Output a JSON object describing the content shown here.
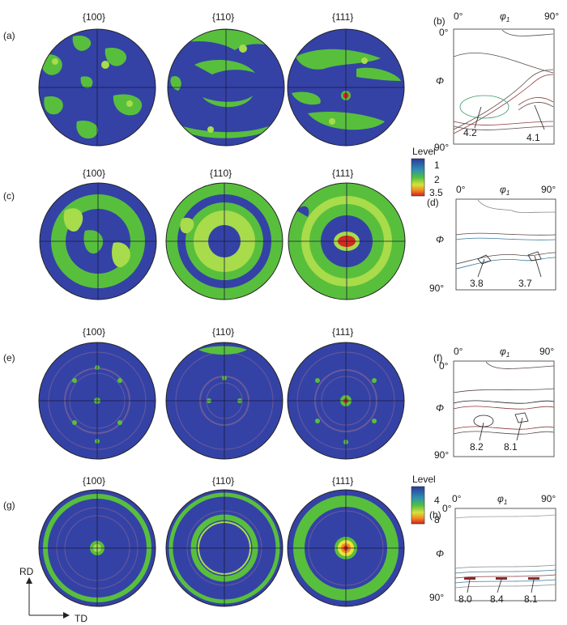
{
  "panel_labels": [
    "(a)",
    "(b)",
    "(c)",
    "(d)",
    "(e)",
    "(f)",
    "(g)",
    "(h)"
  ],
  "rows": [
    {
      "label": "(a)",
      "odf_label": "(b)",
      "poles": [
        "{100}",
        "{110}",
        "{111}"
      ],
      "odf": {
        "phi1_start": "0°",
        "phi1_symbol": "φ",
        "phi1_subscript": "1",
        "phi1_end": "90°",
        "phi_start": "0°",
        "phi_symbol": "Φ",
        "phi_end": "90°",
        "annotations": [
          "4.2",
          "4.1"
        ]
      }
    },
    {
      "label": "(c)",
      "odf_label": "(d)",
      "poles": [
        "{100}",
        "{110}",
        "{111}"
      ],
      "odf": {
        "phi1_start": "0°",
        "phi1_symbol": "φ",
        "phi1_subscript": "1",
        "phi1_end": "90°",
        "phi_start": "0°",
        "phi_symbol": "Φ",
        "phi_end": "90°",
        "annotations": [
          "3.8",
          "3.7"
        ]
      }
    },
    {
      "label": "(e)",
      "odf_label": "(f)",
      "poles": [
        "{100}",
        "{110}",
        "{111}"
      ],
      "odf": {
        "phi1_start": "0°",
        "phi1_symbol": "φ",
        "phi1_subscript": "1",
        "phi1_end": "90°",
        "phi_start": "0°",
        "phi_symbol": "Φ",
        "phi_end": "90°",
        "annotations": [
          "8.2",
          "8.1"
        ]
      }
    },
    {
      "label": "(g)",
      "odf_label": "(h)",
      "poles": [
        "{100}",
        "{110}",
        "{111}"
      ],
      "odf": {
        "phi1_start": "0°",
        "phi1_symbol": "φ",
        "phi1_subscript": "1",
        "phi1_end": "90°",
        "phi_start": "0°",
        "phi_symbol": "Φ",
        "phi_end": "90°",
        "annotations": [
          "8.0",
          "8.4",
          "8.1"
        ]
      }
    }
  ],
  "legends": [
    {
      "title": "Level",
      "ticks": [
        "1",
        "2",
        "3.5"
      ],
      "colors": [
        "#2a3a9c",
        "#2f6fb8",
        "#2fa37a",
        "#5fc23a",
        "#b8df38",
        "#f0e23a",
        "#f08a22",
        "#d21e1e"
      ]
    },
    {
      "title": "Level",
      "ticks": [
        "4",
        "8"
      ],
      "colors": [
        "#2a3a9c",
        "#2f6fb8",
        "#2fa37a",
        "#5fc23a",
        "#b8df38",
        "#f0e23a",
        "#f08a22",
        "#d21e1e"
      ]
    }
  ],
  "axes_key": {
    "rd": "RD",
    "td": "TD"
  },
  "colors": {
    "pole_bg": "#3442a6",
    "green": "#58bf3c",
    "light_green": "#a8dc4a",
    "contour": "#6a5a9a",
    "red": "#d52a20",
    "odf_line": "#5a4a4a"
  }
}
